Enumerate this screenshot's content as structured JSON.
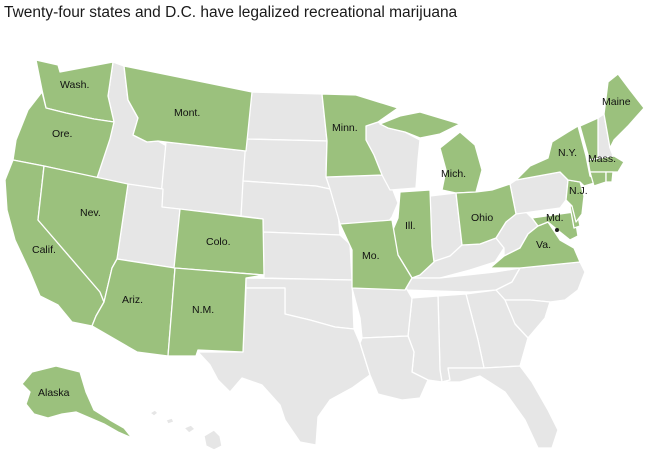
{
  "title": "Twenty-four states and D.C. have legalized recreational marijuana",
  "colors": {
    "legal": "#9bc17d",
    "other": "#e6e6e6",
    "border": "#ffffff"
  },
  "legal_states": [
    "Washington",
    "Oregon",
    "California",
    "Nevada",
    "Montana",
    "Arizona",
    "Colorado",
    "New Mexico",
    "Minnesota",
    "Illinois",
    "Michigan",
    "Missouri",
    "Ohio",
    "Virginia",
    "Maryland",
    "Delaware",
    "New Jersey",
    "New York",
    "Connecticut",
    "Rhode Island",
    "Massachusetts",
    "Vermont",
    "Maine",
    "Alaska",
    "District of Columbia"
  ],
  "labels": {
    "wa": "Wash.",
    "or": "Ore.",
    "ca": "Calif.",
    "nv": "Nev.",
    "mt": "Mont.",
    "az": "Ariz.",
    "co": "Colo.",
    "nm": "N.M.",
    "mn": "Minn.",
    "il": "Ill.",
    "mi": "Mich.",
    "mo": "Mo.",
    "oh": "Ohio",
    "va": "Va.",
    "md": "Md.",
    "nj": "N.J.",
    "ny": "N.Y.",
    "ma": "Mass.",
    "me": "Maine",
    "ak": "Alaska"
  }
}
